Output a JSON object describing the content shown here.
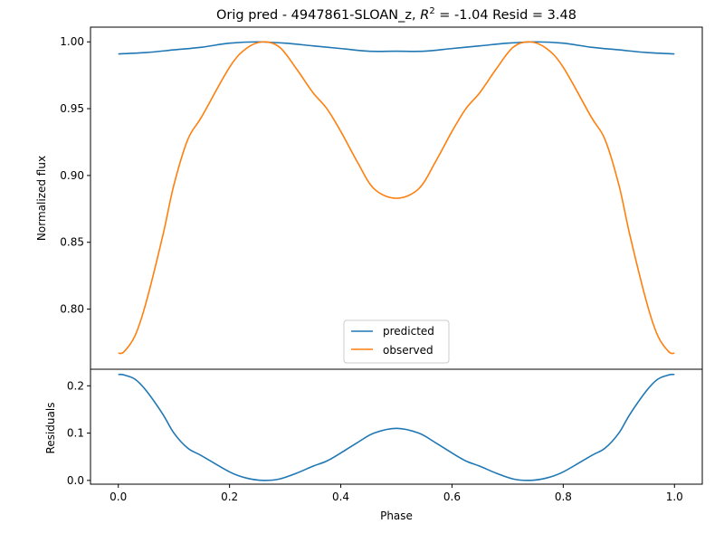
{
  "chart_data": [
    {
      "type": "line",
      "title": "Orig pred - 4947861-SLOAN_z, R² = -1.04 Resid = 3.48",
      "title_parts": {
        "prefix": "Orig pred - 4947861-SLOAN_z, ",
        "r_symbol": "R",
        "r_sup": "2",
        "suffix": " = -1.04 Resid = 3.48"
      },
      "xlabel": "",
      "ylabel": "Normalized flux",
      "xlim": [
        -0.05,
        1.05
      ],
      "ylim": [
        0.755,
        1.011
      ],
      "y_ticks": [
        "0.80",
        "0.85",
        "0.90",
        "0.95",
        "1.00"
      ],
      "y_tick_values": [
        0.8,
        0.85,
        0.9,
        0.95,
        1.0
      ],
      "legend": {
        "placement": "lower-center",
        "entries": [
          "predicted",
          "observed"
        ]
      },
      "grid": false,
      "series": [
        {
          "name": "predicted",
          "color": "#1f77b4",
          "x": [
            0.0,
            0.05,
            0.1,
            0.15,
            0.2,
            0.25,
            0.3,
            0.35,
            0.4,
            0.45,
            0.5,
            0.55,
            0.6,
            0.65,
            0.7,
            0.75,
            0.8,
            0.85,
            0.9,
            0.95,
            1.0
          ],
          "y": [
            0.991,
            0.992,
            0.994,
            0.996,
            0.999,
            1.0,
            0.999,
            0.997,
            0.995,
            0.993,
            0.993,
            0.993,
            0.995,
            0.997,
            0.999,
            1.0,
            0.999,
            0.996,
            0.994,
            0.992,
            0.991
          ]
        },
        {
          "name": "observed",
          "color": "#ff7f0e",
          "x": [
            0.0,
            0.01,
            0.03,
            0.05,
            0.08,
            0.1,
            0.125,
            0.15,
            0.2,
            0.23,
            0.26,
            0.29,
            0.32,
            0.35,
            0.375,
            0.4,
            0.43,
            0.46,
            0.5,
            0.54,
            0.57,
            0.6,
            0.625,
            0.65,
            0.68,
            0.71,
            0.74,
            0.77,
            0.8,
            0.85,
            0.875,
            0.9,
            0.92,
            0.95,
            0.97,
            0.99,
            1.0
          ],
          "y": [
            0.767,
            0.768,
            0.78,
            0.805,
            0.855,
            0.893,
            0.927,
            0.944,
            0.981,
            0.995,
            1.0,
            0.996,
            0.98,
            0.962,
            0.95,
            0.933,
            0.91,
            0.89,
            0.883,
            0.89,
            0.91,
            0.933,
            0.95,
            0.962,
            0.98,
            0.996,
            1.0,
            0.995,
            0.981,
            0.944,
            0.927,
            0.893,
            0.855,
            0.805,
            0.78,
            0.768,
            0.767
          ]
        }
      ]
    },
    {
      "type": "line",
      "xlabel": "Phase",
      "ylabel": "Residuals",
      "xlim": [
        -0.05,
        1.05
      ],
      "ylim": [
        -0.008,
        0.235
      ],
      "x_ticks": [
        "0.0",
        "0.2",
        "0.4",
        "0.6",
        "0.8",
        "1.0"
      ],
      "x_tick_values": [
        0.0,
        0.2,
        0.4,
        0.6,
        0.8,
        1.0
      ],
      "y_ticks": [
        "0.0",
        "0.1",
        "0.2"
      ],
      "y_tick_values": [
        0.0,
        0.1,
        0.2
      ],
      "grid": false,
      "series": [
        {
          "name": "",
          "color": "#1f77b4",
          "x": [
            0.0,
            0.01,
            0.03,
            0.05,
            0.08,
            0.1,
            0.125,
            0.15,
            0.2,
            0.23,
            0.26,
            0.29,
            0.32,
            0.35,
            0.375,
            0.4,
            0.43,
            0.46,
            0.5,
            0.54,
            0.57,
            0.6,
            0.625,
            0.65,
            0.68,
            0.71,
            0.74,
            0.77,
            0.8,
            0.85,
            0.875,
            0.9,
            0.92,
            0.95,
            0.97,
            0.99,
            1.0
          ],
          "y": [
            0.224,
            0.223,
            0.214,
            0.19,
            0.14,
            0.1,
            0.068,
            0.052,
            0.018,
            0.005,
            0.0,
            0.003,
            0.015,
            0.03,
            0.041,
            0.058,
            0.08,
            0.1,
            0.11,
            0.1,
            0.08,
            0.058,
            0.041,
            0.03,
            0.015,
            0.003,
            0.0,
            0.005,
            0.018,
            0.052,
            0.068,
            0.1,
            0.14,
            0.19,
            0.214,
            0.223,
            0.224
          ]
        }
      ]
    }
  ]
}
